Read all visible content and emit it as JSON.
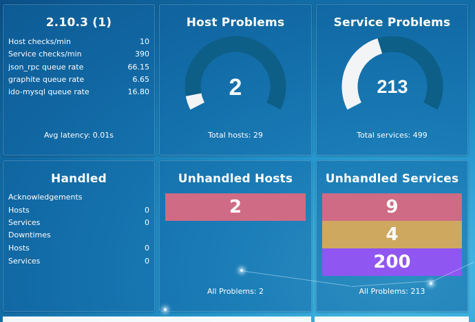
{
  "version_tile": {
    "title": "2.10.3 (1)",
    "rows": [
      {
        "label": "Host checks/min",
        "value": "10"
      },
      {
        "label": "Service checks/min",
        "value": "390"
      },
      {
        "label": "json_rpc queue rate",
        "value": "66.15"
      },
      {
        "label": "graphite queue rate",
        "value": "6.65"
      },
      {
        "label": "ido-mysql queue rate",
        "value": "16.80"
      }
    ],
    "footer": "Avg latency: 0.01s"
  },
  "host_problems": {
    "title": "Host Problems",
    "value": "2",
    "total": 29,
    "footer": "Total hosts: 29"
  },
  "service_problems": {
    "title": "Service Problems",
    "value": "213",
    "total": 499,
    "footer": "Total services: 499"
  },
  "handled": {
    "title": "Handled",
    "rows": [
      {
        "label": "Acknowledgements",
        "value": ""
      },
      {
        "label": "Hosts",
        "value": "0"
      },
      {
        "label": "Services",
        "value": "0"
      },
      {
        "label": "Downtimes",
        "value": ""
      },
      {
        "label": "Hosts",
        "value": "0"
      },
      {
        "label": "Services",
        "value": "0"
      }
    ]
  },
  "unhandled_hosts": {
    "title": "Unhandled Hosts",
    "bars": [
      {
        "value": "2",
        "color": "#cf6b84"
      }
    ],
    "footer": "All Problems: 2"
  },
  "unhandled_services": {
    "title": "Unhandled Services",
    "bars": [
      {
        "value": "9",
        "color": "#cf6b84"
      },
      {
        "value": "4",
        "color": "#cfa85f"
      },
      {
        "value": "200",
        "color": "#8f56f2"
      }
    ],
    "footer": "All Problems: 213"
  },
  "colors": {
    "gauge_track": "#0d5f88",
    "gauge_fill": "#f2f4f6",
    "critical": "#cf6b84",
    "warning": "#cfa85f",
    "unknown": "#8f56f2"
  }
}
